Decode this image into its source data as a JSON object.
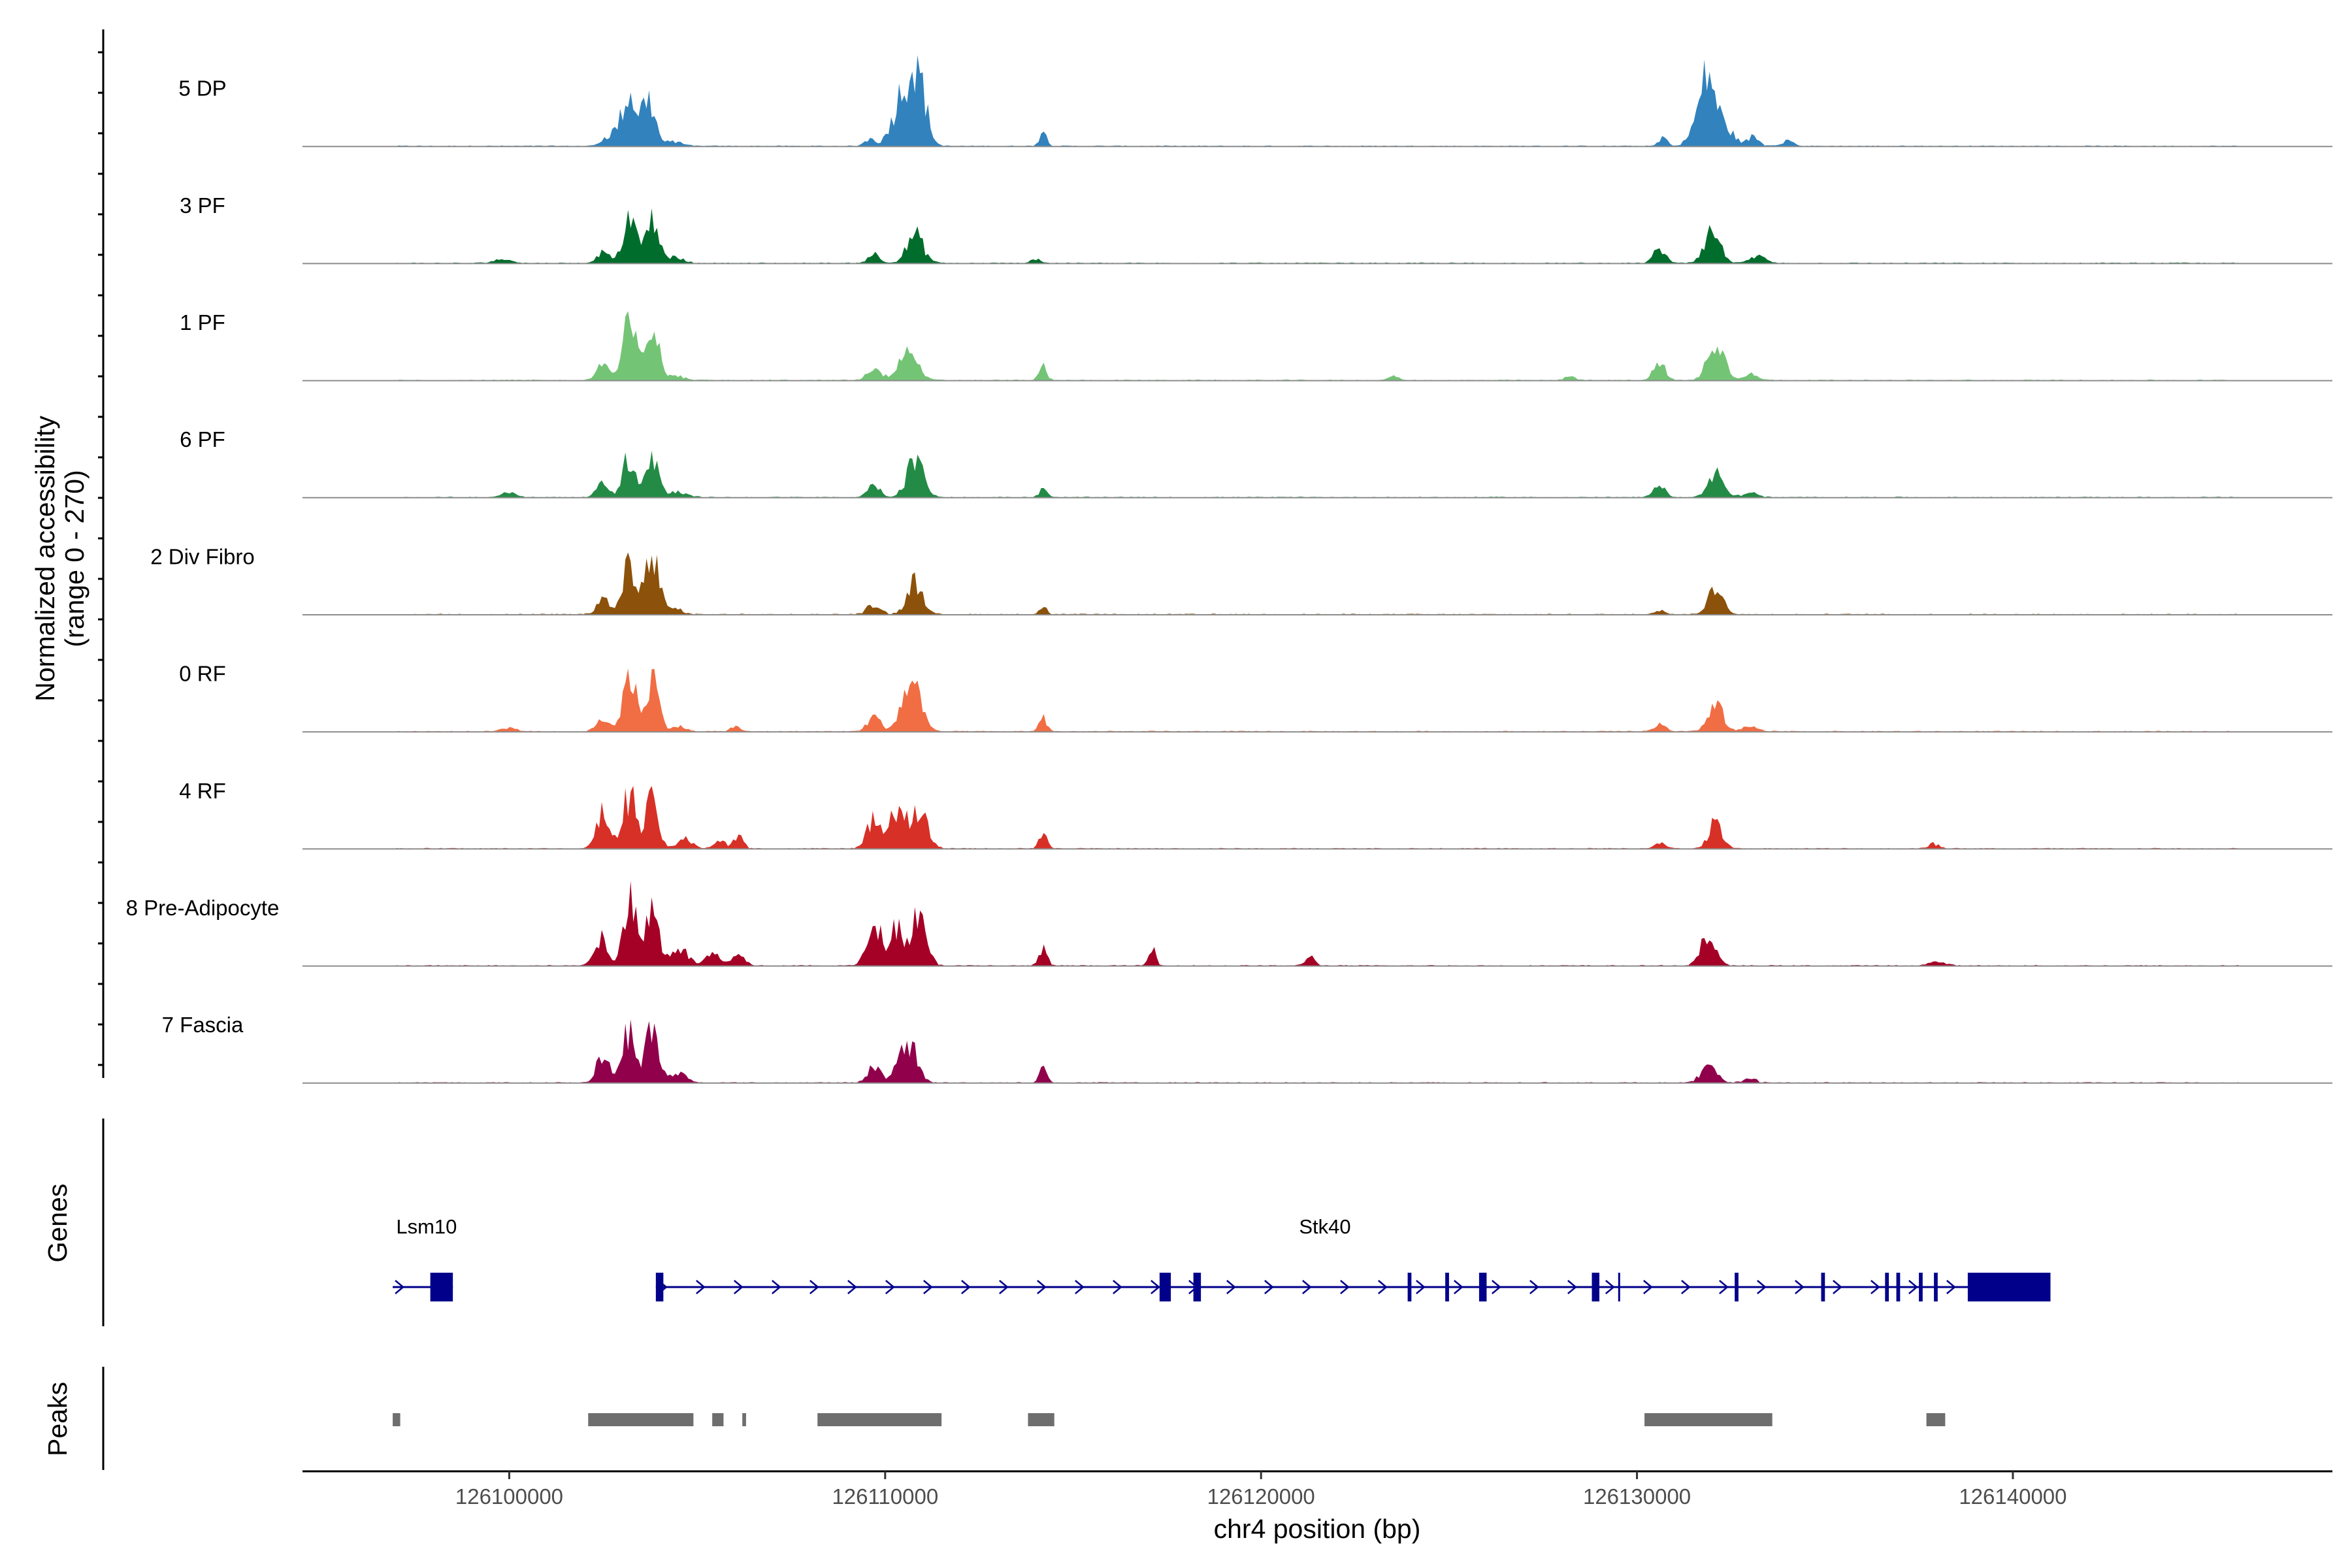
{
  "chart_data": {
    "type": "area",
    "title": "",
    "ylabel_line1": "Normalized accessibility",
    "ylabel_line2": "(range 0 - 270)",
    "ylim": [
      0,
      270
    ],
    "xlabel": "chr4 position (bp)",
    "xlim": [
      126094500,
      126148500
    ],
    "xticks": [
      126100000,
      126110000,
      126120000,
      126130000,
      126140000
    ],
    "xtick_labels": [
      "126100000",
      "126110000",
      "126120000",
      "126130000",
      "126140000"
    ],
    "signal_range": [
      126097000,
      126146000
    ],
    "peak_centers": [
      126102500,
      126103200,
      126103800,
      126104500,
      126106000,
      126109700,
      126110300,
      126110700,
      126111000,
      126114200,
      126130500,
      126131800,
      126132300,
      126133000,
      126137800
    ],
    "series": [
      {
        "name": "5 DP",
        "label": "5 DP",
        "color": "#3182bd",
        "peaks": [
          [
            126102300,
            0,
            0
          ],
          [
            126102600,
            0.05,
            160
          ],
          [
            126102900,
            0.12,
            260
          ],
          [
            126103200,
            0.48,
            180
          ],
          [
            126103700,
            0.5,
            180
          ],
          [
            126104400,
            0.05,
            200
          ],
          [
            126109600,
            0.08,
            140
          ],
          [
            126110300,
            0.24,
            220
          ],
          [
            126110700,
            0.7,
            260
          ],
          [
            126110950,
            0.3,
            180
          ],
          [
            126114200,
            0.18,
            90
          ],
          [
            126130700,
            0.1,
            110
          ],
          [
            126131600,
            0.22,
            200
          ],
          [
            126131900,
            0.65,
            180
          ],
          [
            126132300,
            0.22,
            250
          ],
          [
            126133100,
            0.1,
            150
          ],
          [
            126134000,
            0.06,
            160
          ]
        ]
      },
      {
        "name": "3 PF",
        "label": "3 PF",
        "color": "#006d2c",
        "peaks": [
          [
            126099800,
            0.04,
            250
          ],
          [
            126102500,
            0.12,
            160
          ],
          [
            126103200,
            0.52,
            170
          ],
          [
            126103800,
            0.46,
            170
          ],
          [
            126104400,
            0.06,
            220
          ],
          [
            126109700,
            0.1,
            160
          ],
          [
            126110800,
            0.3,
            220
          ],
          [
            126114000,
            0.05,
            120
          ],
          [
            126130600,
            0.16,
            150
          ],
          [
            126132000,
            0.35,
            210
          ],
          [
            126133200,
            0.07,
            200
          ]
        ]
      },
      {
        "name": "1 PF",
        "label": "1 PF",
        "color": "#74c476",
        "peaks": [
          [
            126102500,
            0.18,
            170
          ],
          [
            126103200,
            0.62,
            170
          ],
          [
            126103800,
            0.58,
            170
          ],
          [
            126104400,
            0.05,
            220
          ],
          [
            126109700,
            0.14,
            170
          ],
          [
            126110600,
            0.34,
            250
          ],
          [
            126114200,
            0.14,
            100
          ],
          [
            126123500,
            0.05,
            120
          ],
          [
            126128200,
            0.06,
            120
          ],
          [
            126130600,
            0.18,
            160
          ],
          [
            126132100,
            0.47,
            210
          ],
          [
            126133000,
            0.07,
            200
          ]
        ]
      },
      {
        "name": "6 PF",
        "label": "6 PF",
        "color": "#238b45",
        "peaks": [
          [
            126100000,
            0.05,
            220
          ],
          [
            126102500,
            0.16,
            160
          ],
          [
            126103200,
            0.44,
            170
          ],
          [
            126103800,
            0.46,
            170
          ],
          [
            126104500,
            0.06,
            240
          ],
          [
            126109700,
            0.12,
            170
          ],
          [
            126110800,
            0.4,
            220
          ],
          [
            126114200,
            0.1,
            100
          ],
          [
            126130600,
            0.14,
            150
          ],
          [
            126132100,
            0.25,
            200
          ],
          [
            126133000,
            0.05,
            200
          ]
        ]
      },
      {
        "name": "2 Div Fibro",
        "label": "2 Div Fibro",
        "color": "#8c510a",
        "peaks": [
          [
            126102500,
            0.16,
            170
          ],
          [
            126103200,
            0.52,
            180
          ],
          [
            126103800,
            0.62,
            180
          ],
          [
            126104400,
            0.06,
            200
          ],
          [
            126109700,
            0.12,
            170
          ],
          [
            126110800,
            0.36,
            210
          ],
          [
            126114200,
            0.09,
            90
          ],
          [
            126130600,
            0.05,
            150
          ],
          [
            126132100,
            0.26,
            210
          ]
        ]
      },
      {
        "name": "0 RF",
        "label": "0 RF",
        "color": "#f16d43",
        "peaks": [
          [
            126100000,
            0.04,
            200
          ],
          [
            126102500,
            0.14,
            170
          ],
          [
            126103200,
            0.62,
            170
          ],
          [
            126103800,
            0.58,
            170
          ],
          [
            126104500,
            0.05,
            220
          ],
          [
            126106000,
            0.05,
            120
          ],
          [
            126109700,
            0.16,
            170
          ],
          [
            126110700,
            0.54,
            250
          ],
          [
            126114200,
            0.14,
            100
          ],
          [
            126130600,
            0.08,
            150
          ],
          [
            126132100,
            0.27,
            200
          ],
          [
            126133000,
            0.05,
            200
          ]
        ]
      },
      {
        "name": "4 RF",
        "label": "4 RF",
        "color": "#d73027",
        "peaks": [
          [
            126102500,
            0.38,
            170
          ],
          [
            126103200,
            0.6,
            170
          ],
          [
            126103800,
            0.5,
            170
          ],
          [
            126104700,
            0.1,
            200
          ],
          [
            126105600,
            0.08,
            150
          ],
          [
            126106100,
            0.14,
            120
          ],
          [
            126109700,
            0.34,
            170
          ],
          [
            126110300,
            0.45,
            220
          ],
          [
            126110900,
            0.4,
            220
          ],
          [
            126114200,
            0.16,
            100
          ],
          [
            126130600,
            0.06,
            150
          ],
          [
            126132100,
            0.3,
            180
          ],
          [
            126137900,
            0.05,
            150
          ]
        ]
      },
      {
        "name": "8 Pre-Adipocyte",
        "label": "8 Pre-Adipocyte",
        "color": "#a50026",
        "peaks": [
          [
            126102400,
            0.3,
            170
          ],
          [
            126103200,
            0.78,
            170
          ],
          [
            126103800,
            0.62,
            170
          ],
          [
            126104500,
            0.2,
            230
          ],
          [
            126105400,
            0.12,
            200
          ],
          [
            126106100,
            0.1,
            180
          ],
          [
            126109700,
            0.48,
            180
          ],
          [
            126110300,
            0.42,
            200
          ],
          [
            126110900,
            0.56,
            200
          ],
          [
            126114200,
            0.22,
            100
          ],
          [
            126117100,
            0.18,
            90
          ],
          [
            126121300,
            0.1,
            120
          ],
          [
            126131900,
            0.32,
            200
          ],
          [
            126138000,
            0.05,
            200
          ]
        ]
      },
      {
        "name": "7 Fascia",
        "label": "7 Fascia",
        "color": "#91004b",
        "peaks": [
          [
            126102500,
            0.3,
            170
          ],
          [
            126103200,
            0.6,
            170
          ],
          [
            126103800,
            0.58,
            170
          ],
          [
            126104500,
            0.1,
            220
          ],
          [
            126109700,
            0.18,
            170
          ],
          [
            126110600,
            0.46,
            230
          ],
          [
            126114200,
            0.16,
            100
          ],
          [
            126131900,
            0.22,
            190
          ],
          [
            126133000,
            0.04,
            180
          ]
        ]
      }
    ],
    "genes_title": "Genes",
    "genes": [
      {
        "name": "Lsm10",
        "label_pos": 126097800,
        "start": 126096900,
        "end": 126098500,
        "exons": [
          [
            126097900,
            126098500
          ]
        ]
      },
      {
        "name": "Stk40",
        "label_pos": 126121700,
        "start": 126103900,
        "end": 126141000,
        "exons": [
          [
            126103900,
            126104100
          ],
          [
            126117300,
            126117600
          ],
          [
            126118200,
            126118400
          ],
          [
            126123900,
            126124000
          ],
          [
            126124900,
            126125000
          ],
          [
            126125800,
            126126000
          ],
          [
            126128800,
            126129000
          ],
          [
            126129500,
            126129550
          ],
          [
            126132600,
            126132700
          ],
          [
            126134900,
            126135000
          ],
          [
            126136600,
            126136700
          ],
          [
            126136900,
            126137000
          ],
          [
            126137500,
            126137600
          ],
          [
            126137900,
            126138000
          ],
          [
            126138800,
            126141000
          ]
        ]
      }
    ],
    "peaks_title": "Peaks",
    "peak_regions": [
      [
        126096900,
        126097100
      ],
      [
        126102100,
        126104900
      ],
      [
        126105400,
        126105700
      ],
      [
        126106200,
        126106300
      ],
      [
        126108200,
        126111500
      ],
      [
        126113800,
        126114500
      ],
      [
        126130200,
        126133600
      ],
      [
        126137700,
        126138200
      ]
    ]
  }
}
